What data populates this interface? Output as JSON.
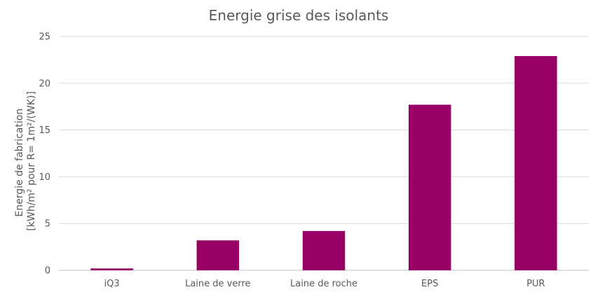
{
  "chart_data": {
    "type": "bar",
    "title": "Energie grise des isolants",
    "categories": [
      "iQ3",
      "Laine de verre",
      "Laine de roche",
      "EPS",
      "PUR"
    ],
    "values": [
      0.2,
      3.2,
      4.2,
      17.7,
      22.9
    ],
    "ylabel": "Energie de fabrication\n[kWh/m² pour R= 1m²/(WK)]",
    "ylabel_lines": [
      "Energie de fabrication",
      "[kWh/m² pour R= 1m²/(WK)]"
    ],
    "xlabel": "",
    "ylim": [
      0,
      25
    ],
    "yticks": [
      0,
      5,
      10,
      15,
      20,
      25
    ],
    "grid": true,
    "legend": "none",
    "bar_color": "#990066"
  }
}
